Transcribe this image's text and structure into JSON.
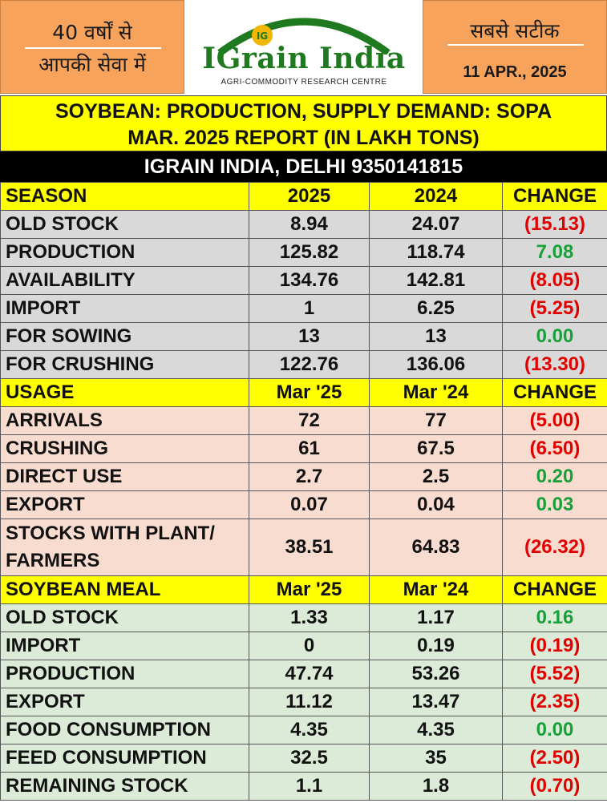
{
  "header": {
    "tagline_line1": "40 वर्षों से",
    "tagline_line2": "आपकी सेवा में",
    "right_tagline": "सबसे सटीक",
    "date": "11 APR., 2025",
    "logo_text": "IGrain India",
    "logo_subtitle": "AGRI-COMMODITY RESEARCH CENTRE",
    "logo_badge": "IG"
  },
  "title": {
    "line1": "SOYBEAN: PRODUCTION, SUPPLY DEMAND: SOPA",
    "line2": "MAR. 2025 REPORT (IN LAKH TONS)",
    "subtitle": "IGRAIN INDIA, DELHI 9350141815"
  },
  "sections": [
    {
      "header": [
        "SEASON",
        "2025",
        "2024",
        "CHANGE"
      ],
      "rows": [
        {
          "label": "OLD STOCK",
          "a": "8.94",
          "b": "24.07",
          "change": "(15.13)",
          "sign": "neg"
        },
        {
          "label": "PRODUCTION",
          "a": "125.82",
          "b": "118.74",
          "change": "7.08",
          "sign": "pos"
        },
        {
          "label": "AVAILABILITY",
          "a": "134.76",
          "b": "142.81",
          "change": "(8.05)",
          "sign": "neg"
        },
        {
          "label": "IMPORT",
          "a": "1",
          "b": "6.25",
          "change": "(5.25)",
          "sign": "neg"
        },
        {
          "label": "FOR SOWING",
          "a": "13",
          "b": "13",
          "change": "0.00",
          "sign": "pos"
        },
        {
          "label": "FOR CRUSHING",
          "a": "122.76",
          "b": "136.06",
          "change": "(13.30)",
          "sign": "neg"
        }
      ]
    },
    {
      "header": [
        "USAGE",
        "Mar '25",
        "Mar '24",
        "CHANGE"
      ],
      "rows": [
        {
          "label": "ARRIVALS",
          "a": "72",
          "b": "77",
          "change": "(5.00)",
          "sign": "neg"
        },
        {
          "label": "CRUSHING",
          "a": "61",
          "b": "67.5",
          "change": "(6.50)",
          "sign": "neg"
        },
        {
          "label": "DIRECT USE",
          "a": "2.7",
          "b": "2.5",
          "change": "0.20",
          "sign": "pos"
        },
        {
          "label": "EXPORT",
          "a": "0.07",
          "b": "0.04",
          "change": "0.03",
          "sign": "pos"
        },
        {
          "label": "STOCKS WITH PLANT/ FARMERS",
          "a": "38.51",
          "b": "64.83",
          "change": "(26.32)",
          "sign": "neg"
        }
      ]
    },
    {
      "header": [
        "SOYBEAN MEAL",
        "Mar '25",
        "Mar '24",
        "CHANGE"
      ],
      "rows": [
        {
          "label": "OLD STOCK",
          "a": "1.33",
          "b": "1.17",
          "change": "0.16",
          "sign": "pos"
        },
        {
          "label": "IMPORT",
          "a": "0",
          "b": "0.19",
          "change": "(0.19)",
          "sign": "neg"
        },
        {
          "label": "PRODUCTION",
          "a": "47.74",
          "b": "53.26",
          "change": "(5.52)",
          "sign": "neg"
        },
        {
          "label": "EXPORT",
          "a": "11.12",
          "b": "13.47",
          "change": "(2.35)",
          "sign": "neg"
        },
        {
          "label": "FOOD CONSUMPTION",
          "a": "4.35",
          "b": "4.35",
          "change": "0.00",
          "sign": "pos"
        },
        {
          "label": "FEED CONSUMPTION",
          "a": "32.5",
          "b": "35",
          "change": "(2.50)",
          "sign": "neg"
        },
        {
          "label": "REMAINING STOCK",
          "a": "1.1",
          "b": "1.8",
          "change": "(0.70)",
          "sign": "neg"
        }
      ]
    }
  ],
  "colors": {
    "header_orange": "#f7a35c",
    "title_yellow": "#ffff00",
    "negative_red": "#e00000",
    "positive_green": "#1aa03a",
    "section1_bg": "#d9d9d9",
    "section2_bg": "#f8dcd0",
    "section3_bg": "#dcead8"
  }
}
